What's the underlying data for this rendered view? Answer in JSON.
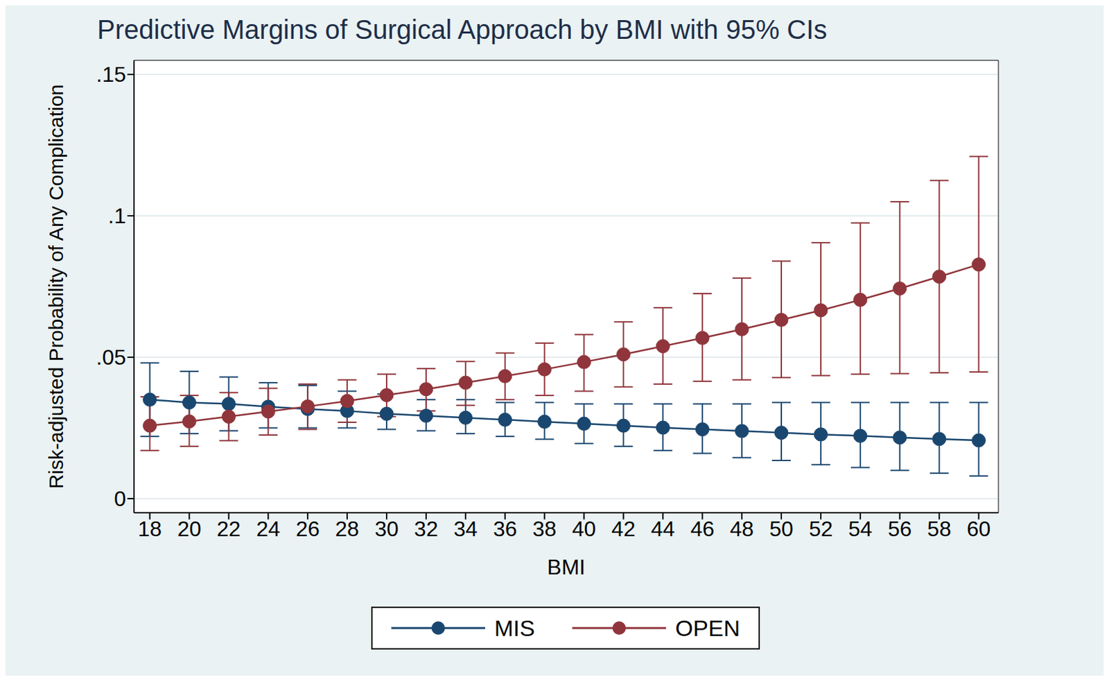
{
  "chart_data": {
    "type": "line",
    "title": "Predictive Margins of Surgical Approach by BMI with 95% CIs",
    "x_label": "BMI",
    "y_label": "Risk-adjusted Probability of Any Complication",
    "x": [
      18,
      20,
      22,
      24,
      26,
      28,
      30,
      32,
      34,
      36,
      38,
      40,
      42,
      44,
      46,
      48,
      50,
      52,
      54,
      56,
      58,
      60
    ],
    "series": [
      {
        "name": "MIS",
        "color": "#1a476f",
        "marker": "circle",
        "line_style": "solid",
        "values": [
          0.035,
          0.034,
          0.0335,
          0.0325,
          0.0317,
          0.031,
          0.03,
          0.0293,
          0.0286,
          0.0279,
          0.0272,
          0.0265,
          0.0258,
          0.0251,
          0.0245,
          0.0239,
          0.0233,
          0.0227,
          0.0222,
          0.0216,
          0.0211,
          0.0206
        ],
        "lower": [
          0.022,
          0.023,
          0.024,
          0.025,
          0.025,
          0.025,
          0.0245,
          0.024,
          0.023,
          0.022,
          0.021,
          0.0195,
          0.0185,
          0.017,
          0.016,
          0.0145,
          0.0135,
          0.012,
          0.011,
          0.01,
          0.009,
          0.008
        ],
        "upper": [
          0.048,
          0.045,
          0.043,
          0.041,
          0.04,
          0.038,
          0.037,
          0.035,
          0.035,
          0.034,
          0.034,
          0.0335,
          0.0335,
          0.0335,
          0.0335,
          0.0335,
          0.034,
          0.034,
          0.034,
          0.034,
          0.034,
          0.034
        ]
      },
      {
        "name": "OPEN",
        "color": "#90353b",
        "marker": "circle",
        "line_style": "solid",
        "values": [
          0.0258,
          0.0273,
          0.029,
          0.0308,
          0.0326,
          0.0345,
          0.0366,
          0.0387,
          0.041,
          0.0433,
          0.0457,
          0.0483,
          0.051,
          0.0539,
          0.0568,
          0.0599,
          0.0632,
          0.0666,
          0.0703,
          0.0743,
          0.0785,
          0.0828
        ],
        "lower": [
          0.017,
          0.0185,
          0.0205,
          0.0225,
          0.0245,
          0.027,
          0.029,
          0.031,
          0.033,
          0.035,
          0.0365,
          0.038,
          0.0395,
          0.0405,
          0.0415,
          0.042,
          0.0428,
          0.0435,
          0.044,
          0.0442,
          0.0445,
          0.0448
        ],
        "upper": [
          0.036,
          0.0365,
          0.0375,
          0.039,
          0.0405,
          0.042,
          0.044,
          0.046,
          0.0485,
          0.0515,
          0.055,
          0.058,
          0.0625,
          0.0675,
          0.0725,
          0.078,
          0.084,
          0.0905,
          0.0975,
          0.105,
          0.1125,
          0.121
        ]
      }
    ],
    "xlim": [
      17.2,
      61
    ],
    "xticks": [
      18,
      20,
      22,
      24,
      26,
      28,
      30,
      32,
      34,
      36,
      38,
      40,
      42,
      44,
      46,
      48,
      50,
      52,
      54,
      56,
      58,
      60
    ],
    "ylim": [
      -0.005,
      0.155
    ],
    "yticks": [
      0,
      {
        "value": 0.05,
        "label": ".05"
      },
      {
        "value": 0.1,
        "label": ".1"
      },
      {
        "value": 0.15,
        "label": ".15"
      }
    ],
    "grid": true,
    "legend": "bottom"
  }
}
